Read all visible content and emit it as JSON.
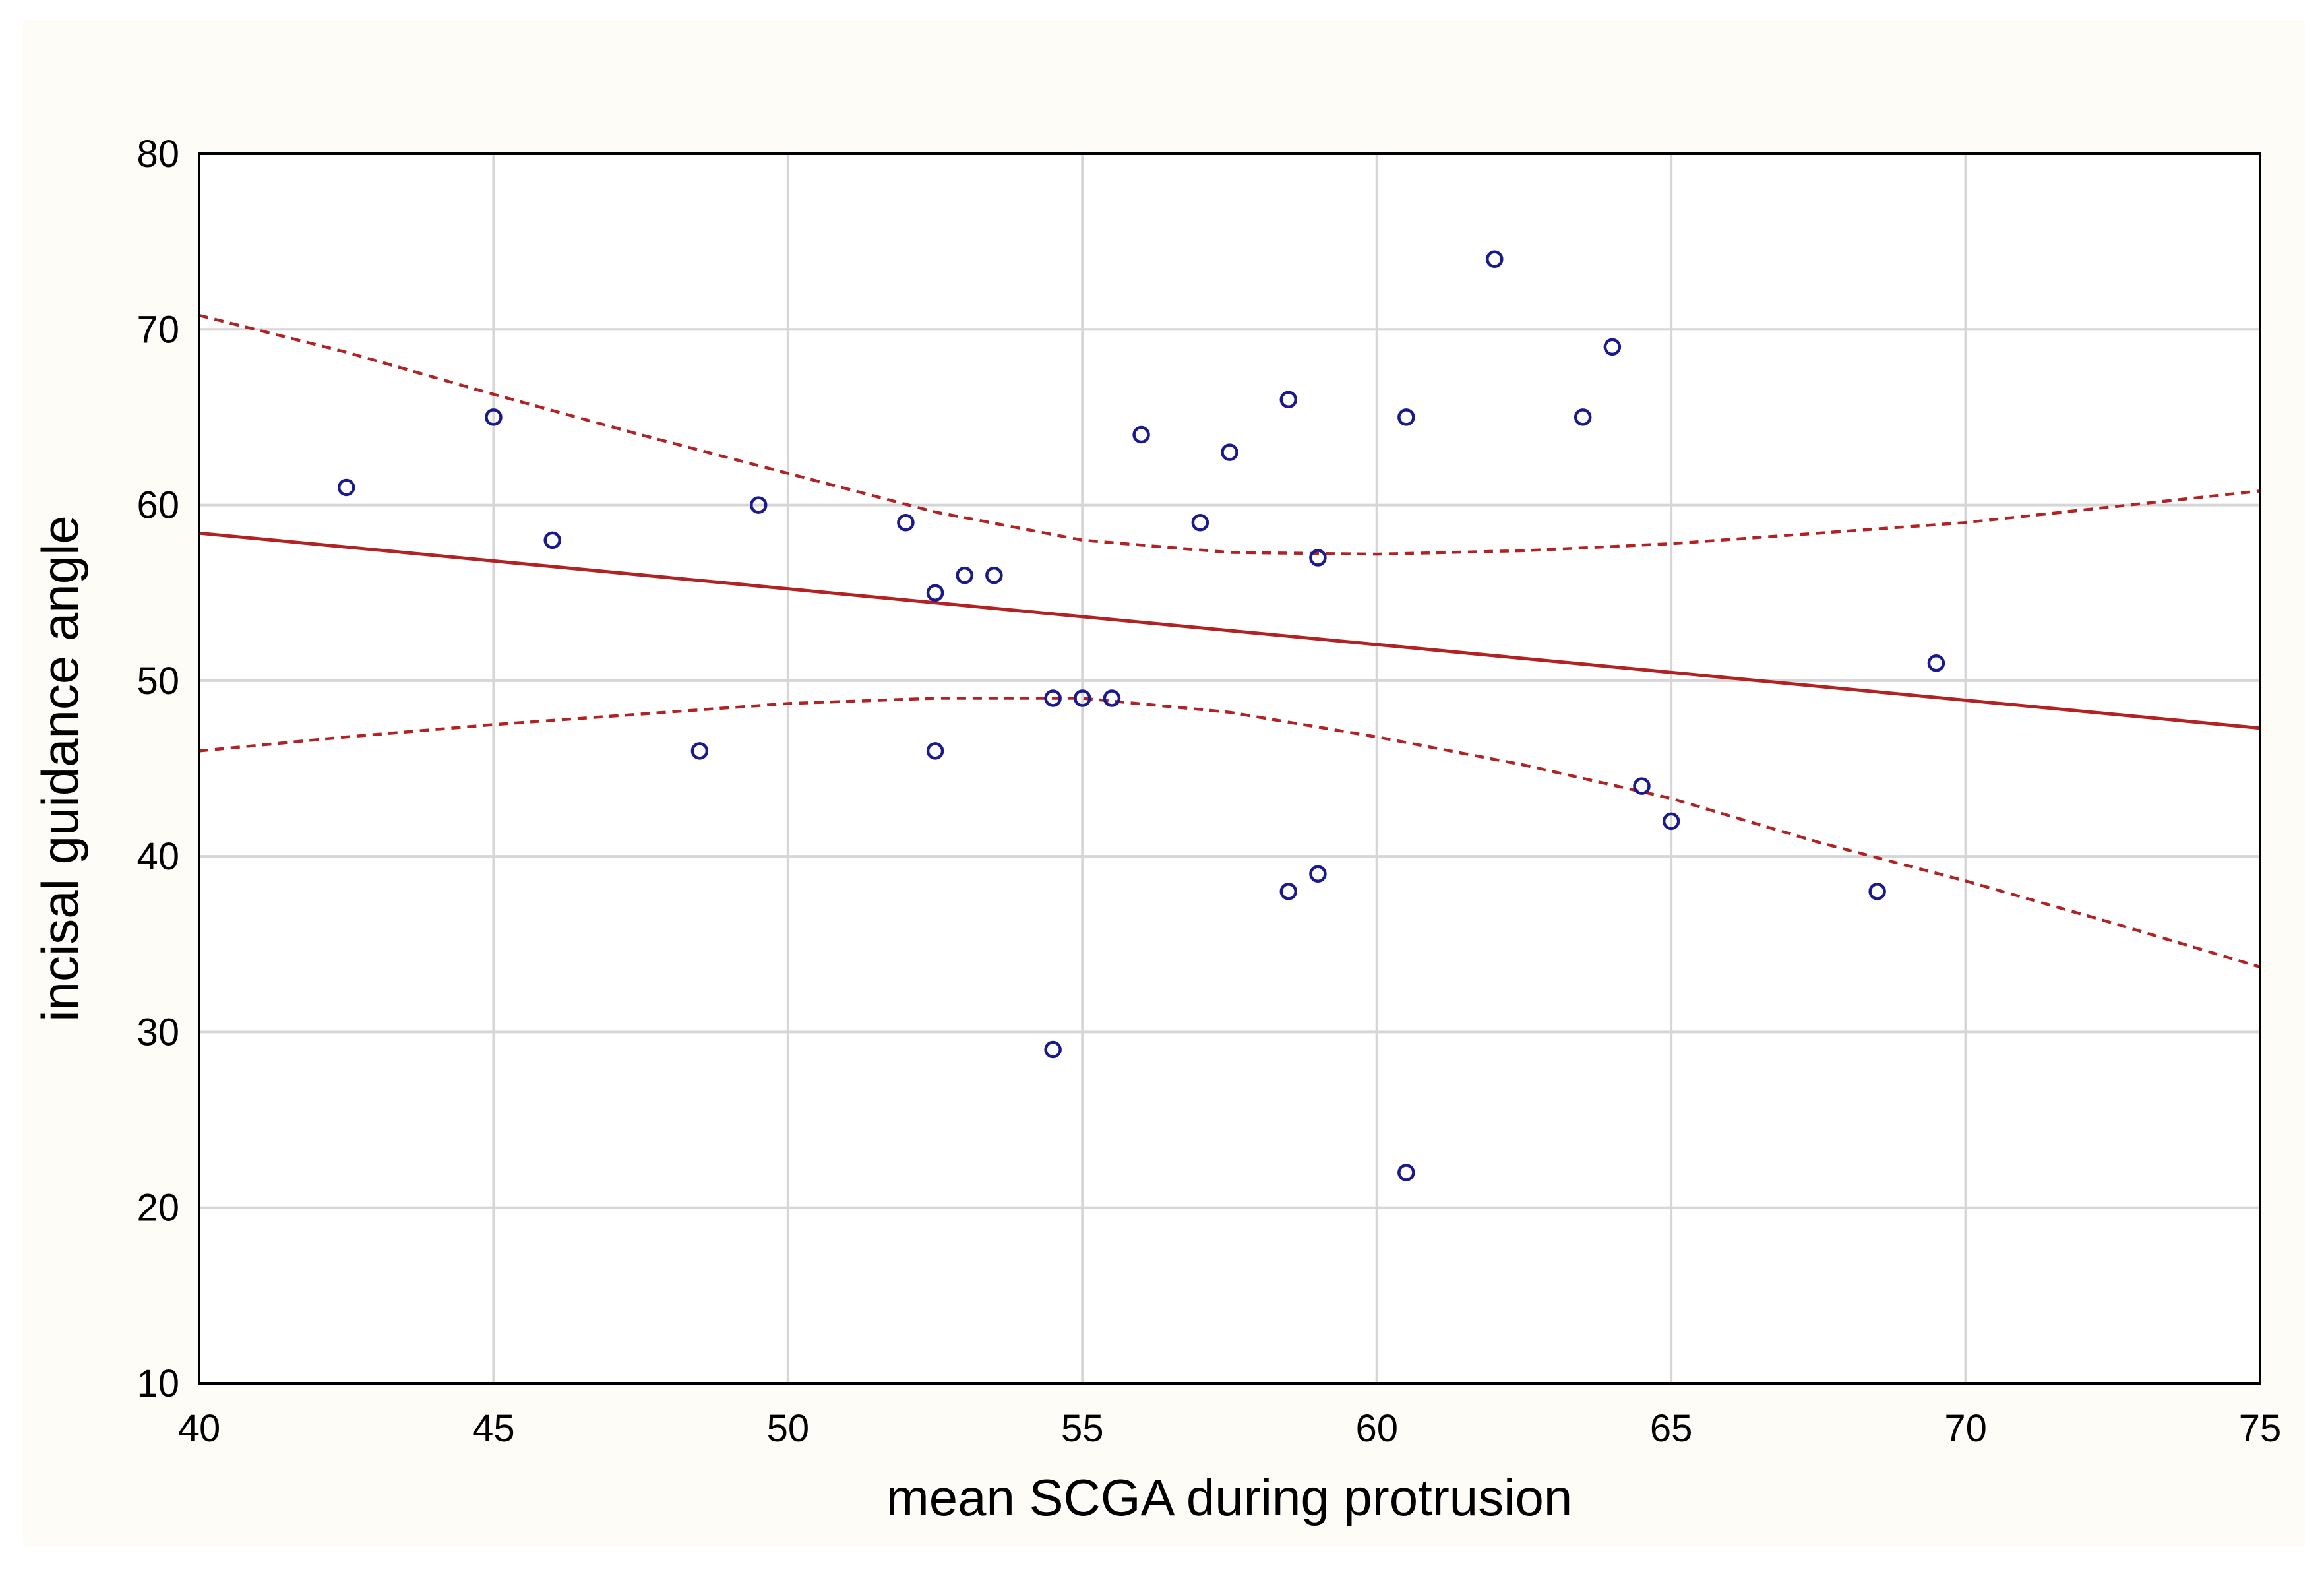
{
  "chart_data": {
    "type": "scatter",
    "xlabel": "mean SCGA during protrusion",
    "ylabel": "incisal guidance angle",
    "xlim": [
      40,
      75
    ],
    "ylim": [
      10,
      80
    ],
    "x_ticks": [
      40,
      45,
      50,
      55,
      60,
      65,
      70,
      75
    ],
    "y_ticks": [
      10,
      20,
      30,
      40,
      50,
      60,
      70,
      80
    ],
    "grid": true,
    "colors": {
      "points": "#1a1a8c",
      "fit_line": "#b22222",
      "confidence_band": "#b22222",
      "grid": "#d6d6d6",
      "background": "#fdfcf6"
    },
    "points": [
      {
        "x": 42.5,
        "y": 61
      },
      {
        "x": 45.0,
        "y": 65
      },
      {
        "x": 46.0,
        "y": 58
      },
      {
        "x": 48.5,
        "y": 46
      },
      {
        "x": 49.5,
        "y": 60
      },
      {
        "x": 52.0,
        "y": 59
      },
      {
        "x": 52.5,
        "y": 55
      },
      {
        "x": 52.5,
        "y": 46
      },
      {
        "x": 53.0,
        "y": 56
      },
      {
        "x": 53.5,
        "y": 56
      },
      {
        "x": 54.5,
        "y": 49
      },
      {
        "x": 54.5,
        "y": 29
      },
      {
        "x": 55.0,
        "y": 49
      },
      {
        "x": 55.5,
        "y": 49
      },
      {
        "x": 56.0,
        "y": 64
      },
      {
        "x": 57.0,
        "y": 59
      },
      {
        "x": 57.5,
        "y": 63
      },
      {
        "x": 58.5,
        "y": 66
      },
      {
        "x": 58.5,
        "y": 38
      },
      {
        "x": 59.0,
        "y": 57
      },
      {
        "x": 59.0,
        "y": 39
      },
      {
        "x": 60.5,
        "y": 65
      },
      {
        "x": 60.5,
        "y": 22
      },
      {
        "x": 62.0,
        "y": 74
      },
      {
        "x": 63.5,
        "y": 65
      },
      {
        "x": 64.0,
        "y": 69
      },
      {
        "x": 64.5,
        "y": 44
      },
      {
        "x": 65.0,
        "y": 42
      },
      {
        "x": 68.5,
        "y": 38
      },
      {
        "x": 69.5,
        "y": 51
      }
    ],
    "fit_line": {
      "x": [
        40,
        75
      ],
      "y": [
        58.4,
        47.3
      ]
    },
    "confidence_band": {
      "upper": {
        "x": [
          40,
          42.5,
          45,
          47.5,
          50,
          52.5,
          55,
          57.5,
          60,
          62.5,
          65,
          67.5,
          70,
          72.5,
          75
        ],
        "y": [
          70.8,
          68.7,
          66.3,
          64.0,
          61.8,
          59.6,
          58.0,
          57.3,
          57.2,
          57.4,
          57.8,
          58.4,
          59.0,
          59.9,
          60.8
        ]
      },
      "lower": {
        "x": [
          40,
          42.5,
          45,
          47.5,
          50,
          52.5,
          55,
          57.5,
          60,
          62.5,
          65,
          67.5,
          70,
          72.5,
          75
        ],
        "y": [
          46.0,
          46.8,
          47.5,
          48.1,
          48.7,
          49.0,
          49.0,
          48.2,
          46.8,
          45.2,
          43.3,
          40.8,
          38.6,
          36.2,
          33.7
        ]
      }
    }
  }
}
